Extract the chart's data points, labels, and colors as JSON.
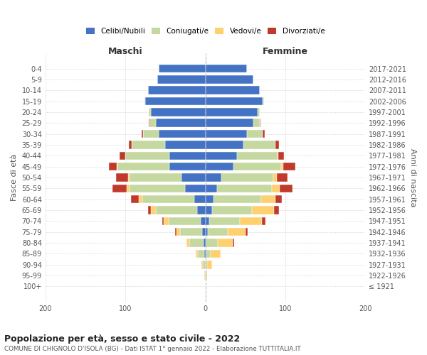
{
  "age_groups": [
    "100+",
    "95-99",
    "90-94",
    "85-89",
    "80-84",
    "75-79",
    "70-74",
    "65-69",
    "60-64",
    "55-59",
    "50-54",
    "45-49",
    "40-44",
    "35-39",
    "30-34",
    "25-29",
    "20-24",
    "15-19",
    "10-14",
    "5-9",
    "0-4"
  ],
  "birth_years": [
    "≤ 1921",
    "1922-1926",
    "1927-1931",
    "1932-1936",
    "1937-1941",
    "1942-1946",
    "1947-1951",
    "1952-1956",
    "1957-1961",
    "1962-1966",
    "1967-1971",
    "1972-1976",
    "1977-1981",
    "1982-1986",
    "1987-1991",
    "1992-1996",
    "1997-2001",
    "2002-2006",
    "2007-2011",
    "2012-2016",
    "2017-2021"
  ],
  "maschi_celibi": [
    0,
    0,
    0,
    1,
    2,
    4,
    6,
    10,
    14,
    25,
    30,
    45,
    45,
    50,
    58,
    62,
    68,
    75,
    72,
    60,
    58
  ],
  "maschi_coniugati": [
    0,
    1,
    3,
    8,
    18,
    28,
    40,
    52,
    65,
    70,
    65,
    65,
    55,
    42,
    20,
    8,
    3,
    1,
    0,
    0,
    0
  ],
  "maschi_vedovi": [
    0,
    0,
    2,
    3,
    4,
    4,
    6,
    6,
    4,
    3,
    2,
    1,
    0,
    0,
    0,
    0,
    0,
    0,
    0,
    0,
    0
  ],
  "maschi_divorziati": [
    0,
    0,
    0,
    0,
    0,
    2,
    2,
    4,
    10,
    18,
    15,
    10,
    7,
    4,
    2,
    1,
    0,
    0,
    0,
    0,
    0
  ],
  "femmine_nubili": [
    0,
    0,
    0,
    1,
    1,
    3,
    5,
    8,
    10,
    15,
    20,
    35,
    40,
    48,
    52,
    60,
    65,
    72,
    68,
    60,
    52
  ],
  "femmine_coniugate": [
    0,
    0,
    2,
    6,
    15,
    25,
    38,
    50,
    60,
    68,
    65,
    60,
    50,
    40,
    20,
    8,
    3,
    1,
    0,
    0,
    0
  ],
  "femmine_vedove": [
    0,
    2,
    6,
    12,
    18,
    22,
    28,
    28,
    18,
    10,
    4,
    2,
    1,
    0,
    0,
    0,
    0,
    0,
    0,
    0,
    0
  ],
  "femmine_divorziate": [
    0,
    0,
    0,
    0,
    2,
    3,
    4,
    6,
    8,
    16,
    14,
    16,
    7,
    4,
    2,
    1,
    0,
    0,
    0,
    0,
    0
  ],
  "colors": {
    "celibi": "#4472C4",
    "coniugati": "#C5D8A0",
    "vedovi": "#FFD070",
    "divorziati": "#C0392B"
  },
  "title": "Popolazione per età, sesso e stato civile - 2022",
  "subtitle": "COMUNE DI CHIGNOLO D'ISOLA (BG) - Dati ISTAT 1° gennaio 2022 - Elaborazione TUTTITALIA.IT",
  "ylabel_left": "Fasce di età",
  "ylabel_right": "Anni di nascita",
  "xlabel_left": "Maschi",
  "xlabel_right": "Femmine",
  "xlim": 200,
  "background_color": "#ffffff",
  "grid_color": "#cccccc"
}
